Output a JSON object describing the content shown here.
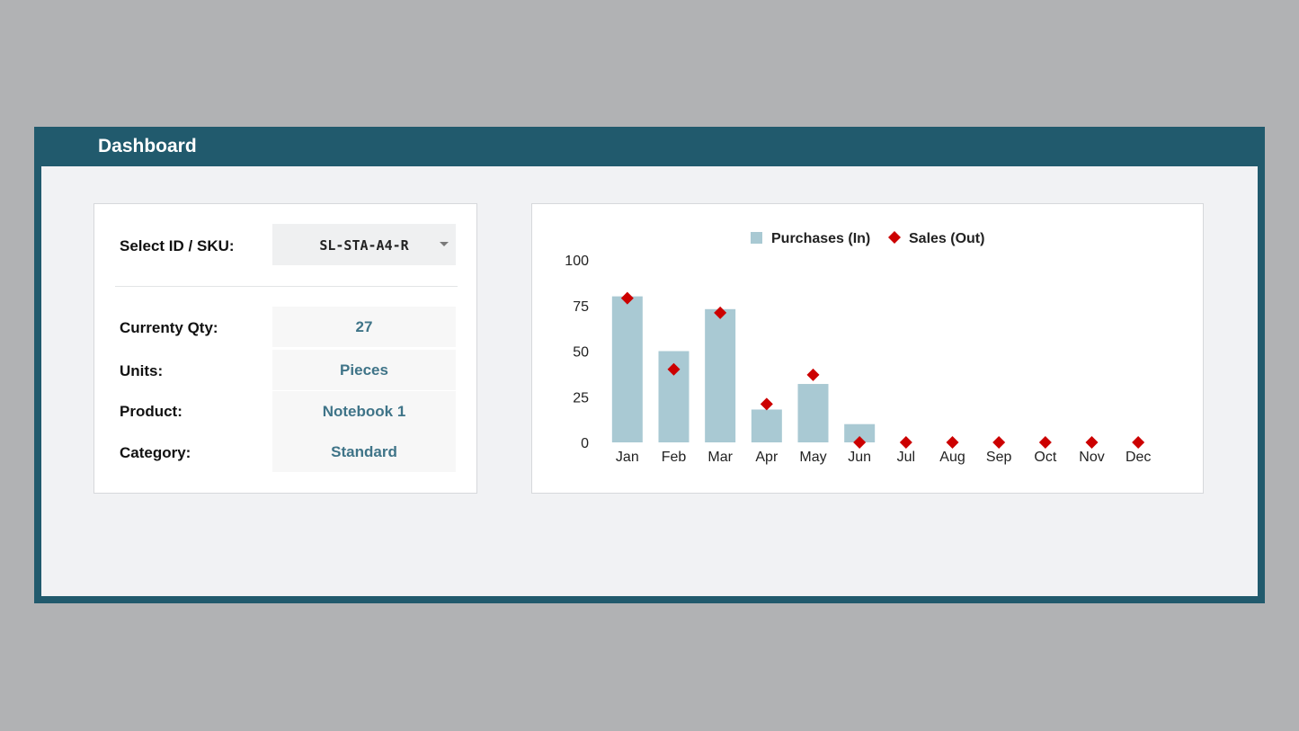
{
  "header": {
    "title": "Dashboard"
  },
  "selector": {
    "label": "Select ID / SKU:",
    "value": "SL-STA-A4-R"
  },
  "fields": [
    {
      "label": "Currenty Qty:",
      "value": "27"
    },
    {
      "label": "Units:",
      "value": "Pieces"
    },
    {
      "label": "Product:",
      "value": "Notebook 1"
    },
    {
      "label": "Category:",
      "value": "Standard"
    }
  ],
  "chart_data": {
    "type": "bar",
    "categories": [
      "Jan",
      "Feb",
      "Mar",
      "Apr",
      "May",
      "Jun",
      "Jul",
      "Aug",
      "Sep",
      "Oct",
      "Nov",
      "Dec"
    ],
    "series": [
      {
        "name": "Purchases (In)",
        "type": "bar",
        "color": "#a9c9d3",
        "values": [
          80,
          50,
          73,
          18,
          32,
          10,
          0,
          0,
          0,
          0,
          0,
          0
        ]
      },
      {
        "name": "Sales (Out)",
        "type": "scatter",
        "marker": "diamond",
        "color": "#cc0000",
        "values": [
          79,
          40,
          71,
          21,
          37,
          0,
          0,
          0,
          0,
          0,
          0,
          0
        ]
      }
    ],
    "yticks": [
      0,
      25,
      50,
      75,
      100
    ],
    "ylim": [
      0,
      100
    ],
    "legend": "top-center",
    "grid": false
  }
}
